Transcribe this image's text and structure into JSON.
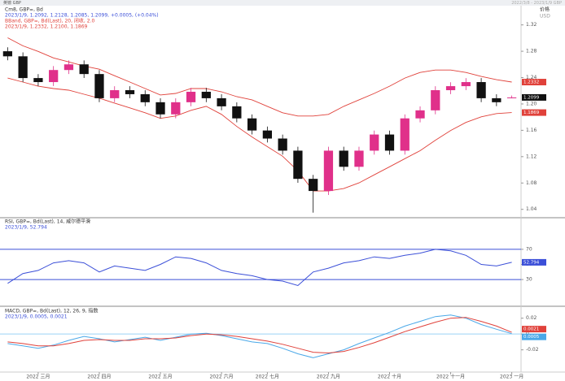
{
  "header": {
    "title": "英镑 GBP",
    "range": "2022/3/8 - 2023/1/9 GBP"
  },
  "chart_data": [
    {
      "type": "candlestick",
      "title": "Cm8, GBP=, Bd",
      "subtitle": "2023/1/9, 1.2092, 1.2128, 1.2085, 1.2099, +0.0005, (+0.04%)",
      "y_label": "价格",
      "y_unit": "USD",
      "categories": [
        null,
        null,
        "2022 三月",
        null,
        null,
        null,
        "2022 四月",
        null,
        null,
        null,
        "2022 五月",
        null,
        null,
        null,
        "2022 六月",
        null,
        null,
        "2022 七月",
        null,
        null,
        null,
        "2022 九月",
        null,
        null,
        null,
        "2022 十月",
        null,
        null,
        null,
        "2022 十一月",
        null,
        null,
        null,
        "2023 一月"
      ],
      "open": [
        1.28,
        1.2723,
        1.2393,
        1.2332,
        1.2515,
        1.2601,
        1.2454,
        1.2087,
        1.2209,
        1.2148,
        1.2026,
        1.1842,
        1.2026,
        1.2185,
        1.2087,
        1.1964,
        1.1781,
        1.1597,
        1.1475,
        1.1291,
        1.0863,
        1.0679,
        1.1291,
        1.1046,
        1.1291,
        1.1536,
        1.1291,
        1.1781,
        1.1903,
        1.2209,
        1.227,
        1.2332,
        1.2087,
        1.2092
      ],
      "high": [
        1.286,
        1.2783,
        1.2453,
        1.2575,
        1.2661,
        1.2661,
        1.2514,
        1.2269,
        1.2269,
        1.2208,
        1.2086,
        1.2086,
        1.2245,
        1.2245,
        1.2147,
        1.2024,
        1.1841,
        1.1657,
        1.1535,
        1.1351,
        1.0923,
        1.1351,
        1.1351,
        1.1351,
        1.1596,
        1.1596,
        1.1841,
        1.1963,
        1.2269,
        1.233,
        1.2392,
        1.2392,
        1.2147,
        1.2128
      ],
      "low": [
        1.2663,
        1.2333,
        1.2272,
        1.2272,
        1.2455,
        1.2394,
        1.2027,
        1.2027,
        1.2088,
        1.1966,
        1.1782,
        1.1782,
        1.1966,
        1.2027,
        1.1904,
        1.1721,
        1.1537,
        1.1415,
        1.1231,
        1.0803,
        1.035,
        1.0619,
        1.0986,
        1.0986,
        1.1231,
        1.1231,
        1.1231,
        1.1721,
        1.1843,
        1.2149,
        1.221,
        1.2027,
        1.1966,
        1.2085
      ],
      "close": [
        1.2723,
        1.2393,
        1.2332,
        1.2515,
        1.2601,
        1.2454,
        1.2087,
        1.2209,
        1.2148,
        1.2026,
        1.1842,
        1.2026,
        1.2185,
        1.2087,
        1.1964,
        1.1781,
        1.1597,
        1.1475,
        1.1291,
        1.0863,
        1.0679,
        1.1291,
        1.1046,
        1.1291,
        1.1536,
        1.1291,
        1.1781,
        1.1903,
        1.2209,
        1.227,
        1.2332,
        1.2087,
        1.2026,
        1.2099
      ],
      "up_color": "#e0308a",
      "down_color": "#111111",
      "bands": {
        "title": "BBand, GBP=, Bd(Last), 20, 闭收, 2.0",
        "subtitle": "2023/1/9, 1.2332, 1.2100, 1.1869",
        "color": "#e0413a",
        "upper": [
          1.3005,
          1.2882,
          1.2797,
          1.2699,
          1.2638,
          1.2576,
          1.2527,
          1.2429,
          1.2332,
          1.2234,
          1.2136,
          1.216,
          1.2234,
          1.2234,
          1.2185,
          1.2111,
          1.2062,
          1.1964,
          1.1866,
          1.1817,
          1.1817,
          1.1842,
          1.1964,
          1.2062,
          1.216,
          1.227,
          1.2393,
          1.2478,
          1.2515,
          1.2515,
          1.2478,
          1.2417,
          1.2368,
          1.2332
        ],
        "lower": [
          1.2393,
          1.2332,
          1.227,
          1.2234,
          1.2209,
          1.2148,
          1.2087,
          1.2013,
          1.194,
          1.1866,
          1.1781,
          1.1817,
          1.1903,
          1.1964,
          1.1842,
          1.1658,
          1.1499,
          1.1352,
          1.1206,
          1.0985,
          1.0679,
          1.0679,
          1.0716,
          1.0802,
          1.0924,
          1.1046,
          1.1169,
          1.1291,
          1.145,
          1.1597,
          1.172,
          1.1805,
          1.1854,
          1.1869
        ]
      },
      "ylim": [
        1.031,
        1.343
      ],
      "yticks": [
        1.04,
        1.08,
        1.12,
        1.16,
        {
          "value": 1.2,
          "label": "1.20"
        },
        1.24,
        1.28,
        1.32
      ]
    },
    {
      "type": "line",
      "title": "RSI, GBP=, Bd(Last), 14, 威尔德平滑",
      "subtitle": "2023/1/9, 52.794",
      "series": [
        {
          "color": "#3b4fd8",
          "values": [
            25,
            38,
            42,
            52,
            55,
            52,
            40,
            48,
            45,
            42,
            50,
            60,
            58,
            52,
            42,
            38,
            35,
            30,
            28,
            22,
            40,
            45,
            52,
            55,
            60,
            58,
            62,
            65,
            70,
            68,
            62,
            50,
            48,
            52.794
          ]
        }
      ],
      "levels": [
        30,
        70
      ],
      "level_color": "#3b4fd8",
      "ylim": [
        0,
        100
      ],
      "yticks": [
        30,
        50,
        70
      ]
    },
    {
      "type": "line",
      "title": "MACD, GBP=, Bd(Last), 12, 26, 9, 指数",
      "subtitle": "2023/1/9, 0.0005, 0.0021",
      "series": [
        {
          "color": "#4aa8e8",
          "values": [
            -0.012,
            -0.015,
            -0.018,
            -0.014,
            -0.008,
            -0.003,
            -0.006,
            -0.01,
            -0.007,
            -0.004,
            -0.008,
            -0.004,
            0.0,
            0.001,
            -0.002,
            -0.006,
            -0.01,
            -0.012,
            -0.018,
            -0.025,
            -0.03,
            -0.025,
            -0.02,
            -0.012,
            -0.005,
            0.002,
            0.01,
            0.016,
            0.022,
            0.024,
            0.02,
            0.012,
            0.006,
            0.0005
          ]
        },
        {
          "color": "#e0413a",
          "values": [
            -0.01,
            -0.012,
            -0.015,
            -0.015,
            -0.012,
            -0.008,
            -0.007,
            -0.008,
            -0.008,
            -0.006,
            -0.006,
            -0.005,
            -0.002,
            0.0,
            -0.001,
            -0.003,
            -0.006,
            -0.009,
            -0.013,
            -0.018,
            -0.023,
            -0.024,
            -0.022,
            -0.017,
            -0.011,
            -0.004,
            0.003,
            0.009,
            0.015,
            0.02,
            0.021,
            0.016,
            0.01,
            0.0021
          ]
        }
      ],
      "levels": [
        0
      ],
      "level_color": "#9ad3f5",
      "ylim": [
        -0.045,
        0.032
      ],
      "yticks": [
        -0.02,
        0,
        0.02
      ]
    }
  ]
}
